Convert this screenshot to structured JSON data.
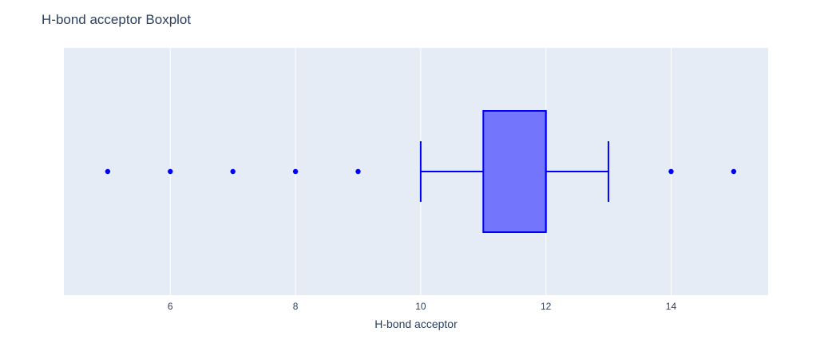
{
  "chart_data": {
    "type": "box",
    "title": "H-bond acceptor Boxplot",
    "xlabel": "H-bond acceptor",
    "ylabel": "",
    "orientation": "horizontal",
    "xlim": [
      4.3,
      15.55
    ],
    "x_ticks": [
      6,
      8,
      10,
      12,
      14
    ],
    "grid": true,
    "box": {
      "q1": 11,
      "median": 12,
      "q3": 12,
      "lower_whisker": 10,
      "upper_whisker": 13
    },
    "outliers": [
      5,
      6,
      7,
      8,
      9,
      14,
      15
    ],
    "colors": {
      "box_fill": "#7375fd",
      "box_line": "#0000ff",
      "outlier": "#0000ff",
      "plot_bg": "#e5ecf6",
      "grid": "#ffffff",
      "text": "#2a3f5f"
    }
  }
}
